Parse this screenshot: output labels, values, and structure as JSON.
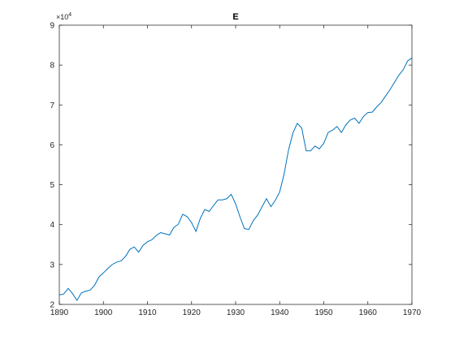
{
  "chart_data": {
    "type": "line",
    "title": "E",
    "xlabel": "",
    "ylabel": "",
    "y_exponent_label": "×10",
    "y_exponent_power": "4",
    "xlim": [
      1890,
      1970
    ],
    "ylim": [
      2,
      9
    ],
    "x_ticks": [
      "1890",
      "1900",
      "1910",
      "1920",
      "1930",
      "1940",
      "1950",
      "1960",
      "1970"
    ],
    "y_ticks": [
      "2",
      "3",
      "4",
      "5",
      "6",
      "7",
      "8",
      "9"
    ],
    "grid": false,
    "line_color": "#0072bd",
    "x": [
      1890,
      1891,
      1892,
      1893,
      1894,
      1895,
      1896,
      1897,
      1898,
      1899,
      1900,
      1901,
      1902,
      1903,
      1904,
      1905,
      1906,
      1907,
      1908,
      1909,
      1910,
      1911,
      1912,
      1913,
      1914,
      1915,
      1916,
      1917,
      1918,
      1919,
      1920,
      1921,
      1922,
      1923,
      1924,
      1925,
      1926,
      1927,
      1928,
      1929,
      1930,
      1931,
      1932,
      1933,
      1934,
      1935,
      1936,
      1937,
      1938,
      1939,
      1940,
      1941,
      1942,
      1943,
      1944,
      1945,
      1946,
      1947,
      1948,
      1949,
      1950,
      1951,
      1952,
      1953,
      1954,
      1955,
      1956,
      1957,
      1958,
      1959,
      1960,
      1961,
      1962,
      1963,
      1964,
      1965,
      1966,
      1967,
      1968,
      1969,
      1970
    ],
    "y": [
      2.24,
      2.26,
      2.4,
      2.27,
      2.1,
      2.29,
      2.33,
      2.36,
      2.48,
      2.69,
      2.79,
      2.9,
      3.0,
      3.06,
      3.09,
      3.2,
      3.38,
      3.44,
      3.31,
      3.48,
      3.57,
      3.62,
      3.73,
      3.8,
      3.77,
      3.74,
      3.93,
      4.01,
      4.26,
      4.2,
      4.05,
      3.83,
      4.16,
      4.38,
      4.33,
      4.48,
      4.62,
      4.62,
      4.65,
      4.76,
      4.52,
      4.19,
      3.9,
      3.88,
      4.1,
      4.24,
      4.45,
      4.65,
      4.45,
      4.61,
      4.82,
      5.27,
      5.87,
      6.3,
      6.54,
      6.42,
      5.85,
      5.85,
      5.97,
      5.9,
      6.04,
      6.31,
      6.37,
      6.46,
      6.31,
      6.5,
      6.62,
      6.67,
      6.54,
      6.71,
      6.81,
      6.82,
      6.95,
      7.06,
      7.22,
      7.38,
      7.56,
      7.74,
      7.88,
      8.1,
      8.18
    ]
  }
}
